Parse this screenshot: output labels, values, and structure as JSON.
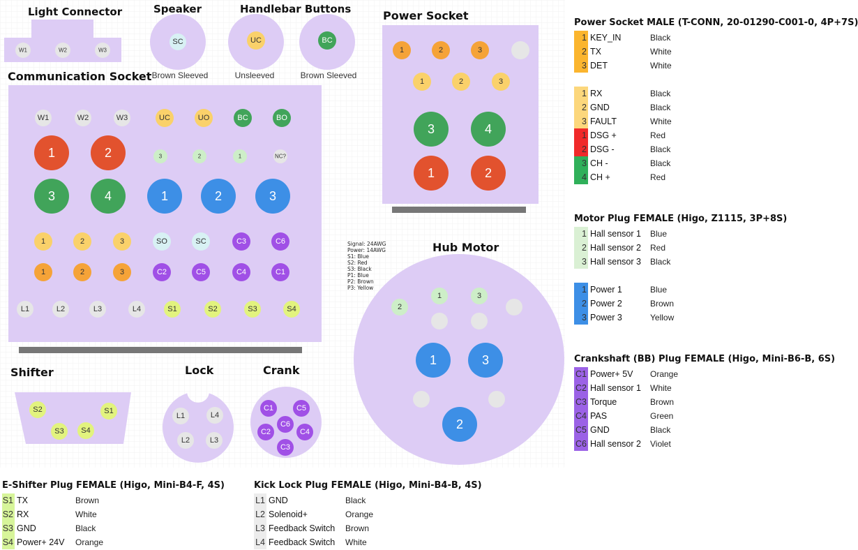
{
  "colors": {
    "panel": "#ddccf5",
    "white": "#e6e6e6",
    "orange": "#f5a338",
    "yellow": "#fad16a",
    "red": "#e2522e",
    "green": "#41a45a",
    "blue": "#3d8fe6",
    "lightgreen": "#cdeec8",
    "purple": "#a050e6",
    "lime": "#e2f37e",
    "bar": "#777777"
  },
  "titles": {
    "light": "Light Connector",
    "speaker": "Speaker",
    "handlebar": "Handlebar Buttons",
    "comm": "Communication Socket",
    "power": "Power Socket",
    "hub": "Hub Motor",
    "shifter": "Shifter",
    "lock": "Lock",
    "crank": "Crank"
  },
  "captions": {
    "speaker": "Brown Sleeved",
    "uc": "Unsleeved",
    "bc": "Brown Sleeved"
  },
  "spec_note": [
    "Signal: 24AWG",
    "Power: 14AWG",
    "S1: Blue",
    "S2: Red",
    "S3: Black",
    "P1: Blue",
    "P2: Brown",
    "P3: Yellow"
  ],
  "pins": {
    "light": [
      {
        "label": "W1",
        "c": "white"
      },
      {
        "label": "W2",
        "c": "white"
      },
      {
        "label": "W3",
        "c": "white"
      }
    ],
    "speaker": [
      {
        "label": "SC",
        "c": "sc"
      }
    ],
    "handlebar": [
      {
        "label": "UC",
        "c": "yellow"
      },
      {
        "label": "BC",
        "c": "green"
      }
    ],
    "comm": [
      {
        "label": "W1",
        "c": "white"
      },
      {
        "label": "W2",
        "c": "white"
      },
      {
        "label": "W3",
        "c": "white"
      },
      {
        "label": "UC",
        "c": "yellow"
      },
      {
        "label": "UO",
        "c": "yellow"
      },
      {
        "label": "BC",
        "c": "green"
      },
      {
        "label": "BO",
        "c": "green"
      },
      {
        "label": "1",
        "c": "red"
      },
      {
        "label": "2",
        "c": "red"
      },
      {
        "label": "3",
        "c": "lightgreen"
      },
      {
        "label": "2",
        "c": "lightgreen"
      },
      {
        "label": "1",
        "c": "lightgreen"
      },
      {
        "label": "NC?",
        "c": "white"
      },
      {
        "label": "3",
        "c": "green"
      },
      {
        "label": "4",
        "c": "green"
      },
      {
        "label": "1",
        "c": "blue"
      },
      {
        "label": "2",
        "c": "blue"
      },
      {
        "label": "3",
        "c": "blue"
      },
      {
        "label": "1",
        "c": "yellow"
      },
      {
        "label": "2",
        "c": "yellow"
      },
      {
        "label": "3",
        "c": "yellow"
      },
      {
        "label": "SO",
        "c": "sc"
      },
      {
        "label": "SC",
        "c": "sc"
      },
      {
        "label": "C3",
        "c": "purple"
      },
      {
        "label": "C6",
        "c": "purple"
      },
      {
        "label": "1",
        "c": "orange"
      },
      {
        "label": "2",
        "c": "orange"
      },
      {
        "label": "3",
        "c": "orange"
      },
      {
        "label": "C2",
        "c": "purple"
      },
      {
        "label": "C5",
        "c": "purple"
      },
      {
        "label": "C4",
        "c": "purple"
      },
      {
        "label": "C1",
        "c": "purple"
      },
      {
        "label": "L1",
        "c": "white"
      },
      {
        "label": "L2",
        "c": "white"
      },
      {
        "label": "L3",
        "c": "white"
      },
      {
        "label": "L4",
        "c": "white"
      },
      {
        "label": "S1",
        "c": "lime"
      },
      {
        "label": "S2",
        "c": "lime"
      },
      {
        "label": "S3",
        "c": "lime"
      },
      {
        "label": "S4",
        "c": "lime"
      }
    ],
    "power": [
      {
        "label": "1",
        "c": "orange"
      },
      {
        "label": "2",
        "c": "orange"
      },
      {
        "label": "3",
        "c": "orange"
      },
      {
        "label": "",
        "c": "white"
      },
      {
        "label": "1",
        "c": "yellow"
      },
      {
        "label": "2",
        "c": "yellow"
      },
      {
        "label": "3",
        "c": "yellow"
      },
      {
        "label": "3",
        "c": "green"
      },
      {
        "label": "4",
        "c": "green"
      },
      {
        "label": "1",
        "c": "red"
      },
      {
        "label": "2",
        "c": "red"
      }
    ],
    "hub": [
      {
        "label": "2",
        "c": "lightgreen"
      },
      {
        "label": "1",
        "c": "lightgreen"
      },
      {
        "label": "3",
        "c": "lightgreen"
      },
      {
        "label": "",
        "c": "white"
      },
      {
        "label": "",
        "c": "white"
      },
      {
        "label": "",
        "c": "white"
      },
      {
        "label": "1",
        "c": "blue"
      },
      {
        "label": "3",
        "c": "blue"
      },
      {
        "label": "",
        "c": "white"
      },
      {
        "label": "",
        "c": "white"
      },
      {
        "label": "2",
        "c": "blue"
      }
    ],
    "shifter": [
      {
        "label": "S2",
        "c": "lime"
      },
      {
        "label": "S1",
        "c": "lime"
      },
      {
        "label": "S3",
        "c": "lime"
      },
      {
        "label": "S4",
        "c": "lime"
      }
    ],
    "lock": [
      {
        "label": "L1",
        "c": "white"
      },
      {
        "label": "L4",
        "c": "white"
      },
      {
        "label": "L2",
        "c": "white"
      },
      {
        "label": "L3",
        "c": "white"
      }
    ],
    "crank": [
      {
        "label": "C1",
        "c": "purple"
      },
      {
        "label": "C5",
        "c": "purple"
      },
      {
        "label": "C6",
        "c": "purple"
      },
      {
        "label": "C2",
        "c": "purple"
      },
      {
        "label": "C4",
        "c": "purple"
      },
      {
        "label": "C3",
        "c": "purple"
      }
    ]
  },
  "legends": {
    "power_socket": {
      "title": "Power Socket MALE (T-CONN, 20-01290-C001-0, 4P+7S)",
      "groups": [
        [
          {
            "num": "1",
            "name": "KEY_IN",
            "color": "Black",
            "c": "orange"
          },
          {
            "num": "2",
            "name": "TX",
            "color": "White",
            "c": "orange"
          },
          {
            "num": "3",
            "name": "DET",
            "color": "White",
            "c": "orange"
          }
        ],
        [
          {
            "num": "1",
            "name": "RX",
            "color": "Black",
            "c": "yellow"
          },
          {
            "num": "2",
            "name": "GND",
            "color": "Black",
            "c": "yellow"
          },
          {
            "num": "3",
            "name": "FAULT",
            "color": "White",
            "c": "yellow"
          },
          {
            "num": "1",
            "name": "DSG +",
            "color": "Red",
            "c": "redl"
          },
          {
            "num": "2",
            "name": "DSG -",
            "color": "Black",
            "c": "redl"
          },
          {
            "num": "3",
            "name": "CH -",
            "color": "Black",
            "c": "greenl"
          },
          {
            "num": "4",
            "name": "CH +",
            "color": "Red",
            "c": "greenl"
          }
        ]
      ]
    },
    "motor_plug": {
      "title": "Motor Plug FEMALE (Higo, Z1115, 3P+8S)",
      "groups": [
        [
          {
            "num": "1",
            "name": "Hall sensor 1",
            "color": "Blue",
            "c": "lightgreen"
          },
          {
            "num": "2",
            "name": "Hall sensor 2",
            "color": "Red",
            "c": "lightgreen"
          },
          {
            "num": "3",
            "name": "Hall sensor 3",
            "color": "Black",
            "c": "lightgreen"
          }
        ],
        [
          {
            "num": "1",
            "name": "Power 1",
            "color": "Blue",
            "c": "blue"
          },
          {
            "num": "2",
            "name": "Power 2",
            "color": "Brown",
            "c": "blue"
          },
          {
            "num": "3",
            "name": "Power 3",
            "color": "Yellow",
            "c": "blue"
          }
        ]
      ]
    },
    "crank_plug": {
      "title": "Crankshaft (BB) Plug FEMALE (Higo, Mini-B6-B, 6S)",
      "groups": [
        [
          {
            "num": "C1",
            "name": "Power+ 5V",
            "color": "Orange",
            "c": "purple"
          },
          {
            "num": "C2",
            "name": "Hall sensor 1",
            "color": "White",
            "c": "purple"
          },
          {
            "num": "C3",
            "name": "Torque",
            "color": "Brown",
            "c": "purple"
          },
          {
            "num": "C4",
            "name": "PAS",
            "color": "Green",
            "c": "purple"
          },
          {
            "num": "C5",
            "name": "GND",
            "color": "Black",
            "c": "purple"
          },
          {
            "num": "C6",
            "name": "Hall sensor 2",
            "color": "Violet",
            "c": "purple"
          }
        ]
      ]
    },
    "shifter_plug": {
      "title": "E-Shifter Plug FEMALE (Higo, Mini-B4-F, 4S)",
      "groups": [
        [
          {
            "num": "S1",
            "name": "TX",
            "color": "Brown",
            "c": "lime"
          },
          {
            "num": "S2",
            "name": "RX",
            "color": "White",
            "c": "lime"
          },
          {
            "num": "S3",
            "name": "GND",
            "color": "Black",
            "c": "lime"
          },
          {
            "num": "S4",
            "name": "Power+ 24V",
            "color": "Orange",
            "c": "lime"
          }
        ]
      ]
    },
    "lock_plug": {
      "title": "Kick Lock Plug FEMALE (Higo, Mini-B4-B, 4S)",
      "groups": [
        [
          {
            "num": "L1",
            "name": "GND",
            "color": "Black",
            "c": "white"
          },
          {
            "num": "L2",
            "name": "Solenoid+",
            "color": "Orange",
            "c": "white"
          },
          {
            "num": "L3",
            "name": "Feedback Switch",
            "color": "Brown",
            "c": "white"
          },
          {
            "num": "L4",
            "name": "Feedback Switch",
            "color": "White",
            "c": "white"
          }
        ]
      ]
    }
  }
}
